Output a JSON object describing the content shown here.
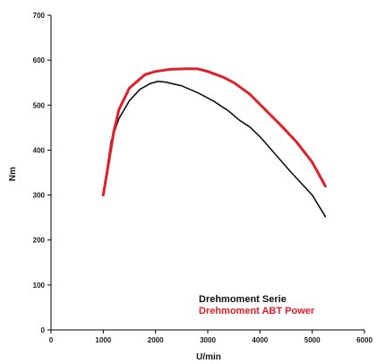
{
  "chart_data": {
    "type": "line",
    "title": "",
    "xlabel": "U/min",
    "ylabel": "Nm",
    "xlim": [
      0,
      6000
    ],
    "ylim": [
      0,
      700
    ],
    "x_ticks": [
      "0",
      "1000",
      "2000",
      "3000",
      "4000",
      "5000",
      "6000"
    ],
    "y_ticks": [
      "0",
      "100",
      "200",
      "300",
      "400",
      "500",
      "600",
      "700"
    ],
    "grid": false,
    "legend_position": "bottom-right",
    "series": [
      {
        "name": "Drehmoment Serie",
        "color": "#111111",
        "points": [
          [
            1000,
            300
          ],
          [
            1150,
            420
          ],
          [
            1300,
            470
          ],
          [
            1500,
            510
          ],
          [
            1700,
            535
          ],
          [
            1900,
            548
          ],
          [
            2050,
            553
          ],
          [
            2200,
            551
          ],
          [
            2500,
            543
          ],
          [
            2800,
            528
          ],
          [
            3100,
            510
          ],
          [
            3400,
            487
          ],
          [
            3600,
            467
          ],
          [
            3800,
            452
          ],
          [
            4000,
            430
          ],
          [
            4300,
            390
          ],
          [
            4600,
            350
          ],
          [
            5000,
            300
          ],
          [
            5250,
            252
          ]
        ]
      },
      {
        "name": "Drehmoment ABT Power",
        "color": "#e0202a",
        "points": [
          [
            1000,
            300
          ],
          [
            1200,
            440
          ],
          [
            1300,
            490
          ],
          [
            1500,
            538
          ],
          [
            1800,
            568
          ],
          [
            2000,
            575
          ],
          [
            2300,
            580
          ],
          [
            2600,
            581
          ],
          [
            2800,
            581
          ],
          [
            3000,
            575
          ],
          [
            3300,
            562
          ],
          [
            3500,
            550
          ],
          [
            3800,
            525
          ],
          [
            4100,
            490
          ],
          [
            4400,
            455
          ],
          [
            4700,
            418
          ],
          [
            5000,
            373
          ],
          [
            5250,
            320
          ]
        ]
      }
    ]
  }
}
